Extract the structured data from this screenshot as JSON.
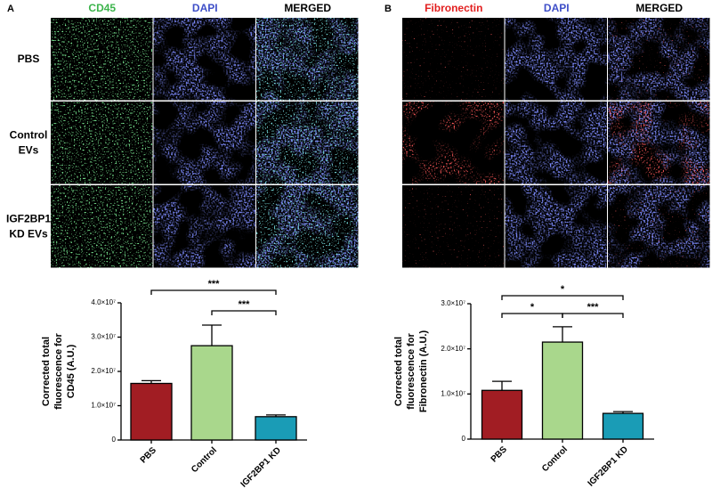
{
  "figure": {
    "panels": [
      {
        "label": "A",
        "columns": [
          "CD45",
          "DAPI",
          "MERGED"
        ],
        "rows": [
          [
            "PBS"
          ],
          [
            "Control",
            "EVs"
          ],
          [
            "IGF2BP1",
            "KD EVs"
          ]
        ]
      },
      {
        "label": "B",
        "columns": [
          "Fibronectin",
          "DAPI",
          "MERGED"
        ],
        "rows": []
      }
    ]
  },
  "chart_data": [
    {
      "type": "bar",
      "categories": [
        "PBS",
        "Control",
        "IGF2BP1 KD"
      ],
      "values": [
        16500000,
        27500000,
        6800000
      ],
      "errors": [
        800000,
        6000000,
        500000
      ],
      "colors": [
        "#a11d23",
        "#a9d78c",
        "#1a9cb6"
      ],
      "ylim": [
        0,
        40000000
      ],
      "yticks": [
        0,
        {
          "value": 10000000,
          "label": "1.0×10⁷"
        },
        {
          "value": 20000000,
          "label": "2.0×10⁷"
        },
        {
          "value": 30000000,
          "label": "3.0×10⁷"
        },
        {
          "value": 40000000,
          "label": "4.0×10⁷"
        }
      ],
      "y_label": [
        "Corrected total",
        "fluorescence for",
        "CD45 (A.U.)"
      ],
      "annotations": [
        {
          "text": "***",
          "from": 0,
          "to": 2
        },
        {
          "text": "***",
          "from": 1,
          "to": 2
        }
      ]
    },
    {
      "type": "bar",
      "categories": [
        "PBS",
        "Control",
        "IGF2BP1 KD"
      ],
      "values": [
        10800000,
        21500000,
        5700000
      ],
      "errors": [
        2000000,
        3400000,
        400000
      ],
      "colors": [
        "#a11d23",
        "#a9d78c",
        "#1a9cb6"
      ],
      "ylim": [
        0,
        30000000
      ],
      "yticks": [
        0,
        {
          "value": 10000000,
          "label": "1.0×10⁷"
        },
        {
          "value": 20000000,
          "label": "2.0×10⁷"
        },
        {
          "value": 30000000,
          "label": "3.0×10⁷"
        }
      ],
      "y_label": [
        "Corrected total",
        "fluorescence for",
        "Fibronectin (A.U.)"
      ],
      "annotations": [
        {
          "text": "*",
          "from": 0,
          "to": 2
        },
        {
          "text": "*",
          "from": 0,
          "to": 1
        },
        {
          "text": "***",
          "from": 1,
          "to": 2
        }
      ]
    }
  ]
}
